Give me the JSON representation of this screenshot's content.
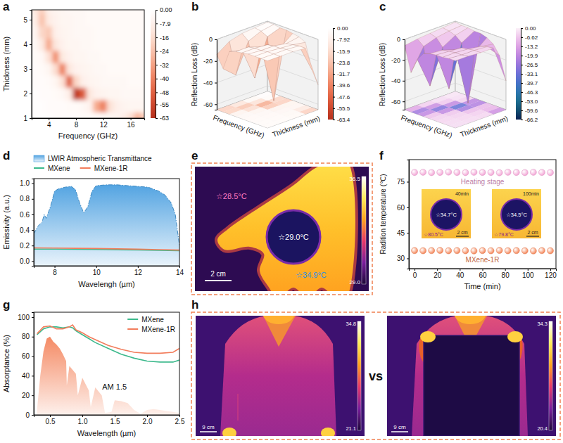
{
  "chart_data": [
    {
      "panel": "a",
      "type": "heatmap",
      "x_label": "Frequency (GHz)",
      "y_label": "Thickness (mm)",
      "x": [
        2,
        3,
        4,
        5,
        6,
        7,
        8,
        9,
        10,
        11,
        12,
        13,
        14,
        15,
        16,
        17,
        18
      ],
      "y": [
        1,
        1.5,
        2,
        2.5,
        3,
        3.5,
        4,
        4.5,
        5,
        5.5
      ],
      "cells": [
        [
          -1,
          -1,
          -1,
          -2,
          -2,
          -2,
          -2,
          -3,
          -3,
          -3,
          -4,
          -5,
          -6,
          -9,
          -15,
          -28,
          -20
        ],
        [
          -1,
          -1,
          -2,
          -2,
          -2,
          -3,
          -3,
          -4,
          -7,
          -30,
          -40,
          -14,
          -8,
          -6,
          -5,
          -5,
          -5
        ],
        [
          -1,
          -2,
          -2,
          -3,
          -4,
          -9,
          -60,
          -50,
          -12,
          -7,
          -6,
          -5,
          -5,
          -4,
          -4,
          -4,
          -4
        ],
        [
          -2,
          -2,
          -3,
          -5,
          -14,
          -48,
          -18,
          -8,
          -6,
          -5,
          -4,
          -4,
          -4,
          -4,
          -3,
          -3,
          -3
        ],
        [
          -2,
          -3,
          -5,
          -16,
          -40,
          -12,
          -7,
          -6,
          -5,
          -4,
          -4,
          -3,
          -3,
          -3,
          -3,
          -3,
          -3
        ],
        [
          -3,
          -4,
          -14,
          -36,
          -11,
          -7,
          -5,
          -5,
          -4,
          -4,
          -3,
          -3,
          -3,
          -3,
          -3,
          -3,
          -3
        ],
        [
          -4,
          -11,
          -30,
          -12,
          -7,
          -5,
          -5,
          -4,
          -4,
          -3,
          -3,
          -3,
          -3,
          -3,
          -3,
          -3,
          -3
        ],
        [
          -6,
          -18,
          -22,
          -8,
          -6,
          -5,
          -4,
          -4,
          -4,
          -3,
          -3,
          -3,
          -3,
          -3,
          -3,
          -3,
          -3
        ],
        [
          -9,
          -24,
          -10,
          -7,
          -5,
          -5,
          -4,
          -4,
          -3,
          -3,
          -3,
          -3,
          -3,
          -3,
          -3,
          -3,
          -3
        ],
        [
          -12,
          -20,
          -8,
          -6,
          -5,
          -4,
          -4,
          -4,
          -3,
          -3,
          -3,
          -3,
          -3,
          -3,
          -3,
          -3,
          -3
        ]
      ],
      "xlim": [
        1.5,
        18
      ],
      "ylim": [
        1,
        5.4
      ],
      "xticks": [
        4,
        8,
        12,
        16
      ],
      "yticks": [
        1,
        2,
        3,
        4,
        5
      ],
      "colorbar": {
        "range": [
          -63,
          0
        ],
        "ticks": [
          {
            "value": 0,
            "label": "0.00"
          },
          -7.9,
          -16,
          -24,
          -32,
          -40,
          -48,
          -55,
          -63
        ]
      }
    },
    {
      "panel": "b",
      "type": "surface3d",
      "x_label": "Frequency (GHz)",
      "y_label": "Thickness (mm)",
      "z_label": "Reflection Loss (dB)",
      "x": [
        2,
        4,
        6,
        8,
        10,
        12,
        14,
        16,
        18
      ],
      "y": [
        1,
        2,
        3,
        4,
        5
      ],
      "z": [
        [
          -1,
          -1,
          -2,
          -2,
          -3,
          -4,
          -7,
          -30,
          -42
        ],
        [
          -2,
          -3,
          -6,
          -63,
          -12,
          -6,
          -5,
          -4,
          -4
        ],
        [
          -3,
          -8,
          -40,
          -9,
          -5,
          -4,
          -4,
          -3,
          -3
        ],
        [
          -6,
          -35,
          -10,
          -5,
          -4,
          -4,
          -3,
          -3,
          -3
        ],
        [
          -14,
          -25,
          -7,
          -5,
          -4,
          -3,
          -3,
          -3,
          -3
        ]
      ],
      "xlim": [
        2,
        18
      ],
      "ylim": [
        1,
        5
      ],
      "zlim": [
        -65,
        0
      ],
      "zticks": [
        0,
        -20,
        -40,
        -60
      ],
      "colorbar": {
        "range": [
          -63.4,
          0
        ],
        "ticks": [
          {
            "value": 0,
            "label": "0.00"
          },
          -7.92,
          -15.9,
          -23.8,
          -31.7,
          -39.6,
          -47.6,
          -55.5,
          -63.4
        ]
      }
    },
    {
      "panel": "c",
      "type": "surface3d",
      "x_label": "Frequency (GHz)",
      "y_label": "Thickness (mm)",
      "z_label": "Reflection Loss (dB)",
      "x": [
        2,
        4,
        6,
        8,
        10,
        12,
        14,
        16,
        18
      ],
      "y": [
        1,
        2,
        3,
        4,
        5
      ],
      "z": [
        [
          -1,
          -2,
          -2,
          -3,
          -3,
          -5,
          -9,
          -18,
          -40
        ],
        [
          -2,
          -3,
          -5,
          -10,
          -66,
          -15,
          -7,
          -5,
          -4
        ],
        [
          -3,
          -5,
          -12,
          -50,
          -10,
          -6,
          -5,
          -4,
          -4
        ],
        [
          -4,
          -9,
          -45,
          -12,
          -6,
          -5,
          -4,
          -4,
          -3
        ],
        [
          -6,
          -30,
          -15,
          -7,
          -5,
          -4,
          -4,
          -3,
          -3
        ]
      ],
      "xlim": [
        2,
        18
      ],
      "ylim": [
        1,
        5
      ],
      "zlim": [
        -68,
        0
      ],
      "zticks": [
        0,
        -20,
        -40,
        -60
      ],
      "colorbar": {
        "range": [
          -66.2,
          0
        ],
        "ticks": [
          {
            "value": 0,
            "label": "0.00"
          },
          -6.62,
          -13.2,
          -19.9,
          -26.5,
          -33.1,
          -39.7,
          -46.3,
          {
            "value": -53,
            "label": "-53.0"
          },
          -59.6,
          -66.2
        ]
      }
    },
    {
      "panel": "d",
      "type": "line",
      "x_label": "Wavelengh (µm)",
      "y_label": "Emissivity (a.u.)",
      "xlim": [
        7,
        14
      ],
      "ylim": [
        -0.06,
        1.06
      ],
      "xticks": [
        8,
        10,
        12,
        14
      ],
      "yticks": [
        {
          "value": 0,
          "label": "0.0"
        },
        0.2,
        0.4,
        0.6,
        0.8,
        {
          "value": 1,
          "label": "1.0"
        }
      ],
      "legend": "top",
      "series": [
        {
          "name": "LWIR Atmospheric Transmittance",
          "type": "area",
          "color": "#4a9fe0",
          "line_style": "dashdot",
          "x": [
            7.0,
            7.2,
            7.4,
            7.5,
            7.6,
            7.8,
            8.0,
            8.2,
            8.5,
            8.8,
            9.0,
            9.2,
            9.4,
            9.6,
            9.8,
            10.0,
            10.5,
            11.0,
            11.5,
            12.0,
            12.5,
            13.0,
            13.3,
            13.6,
            13.8,
            14.0
          ],
          "values": [
            0.35,
            0.45,
            0.5,
            0.6,
            0.55,
            0.7,
            0.9,
            0.93,
            0.95,
            0.96,
            0.92,
            0.75,
            0.62,
            0.7,
            0.9,
            0.97,
            0.98,
            0.98,
            0.97,
            0.96,
            0.95,
            0.9,
            0.85,
            0.75,
            0.6,
            0.2
          ]
        },
        {
          "name": "MXene",
          "type": "line",
          "color": "#3cb98c",
          "x": [
            7,
            8,
            9,
            10,
            11,
            12,
            13,
            14
          ],
          "values": [
            0.155,
            0.155,
            0.152,
            0.15,
            0.147,
            0.143,
            0.14,
            0.135
          ]
        },
        {
          "name": "MXene-1R",
          "type": "line",
          "color": "#f27d5c",
          "x": [
            7,
            8,
            9,
            10,
            11,
            12,
            13,
            14
          ],
          "values": [
            0.17,
            0.168,
            0.165,
            0.162,
            0.158,
            0.153,
            0.148,
            0.142
          ]
        }
      ]
    },
    {
      "panel": "f",
      "type": "scatter",
      "x_label": "Time (min)",
      "y_label": "Radition temperature (℃)",
      "xlim": [
        -5,
        125
      ],
      "ylim": [
        24,
        88
      ],
      "xticks": [
        0,
        20,
        40,
        60,
        80,
        100,
        120
      ],
      "yticks": [
        30,
        45,
        60,
        75
      ],
      "marker": "circle",
      "series": [
        {
          "name": "Heating stage",
          "color": "#f3a6d6",
          "x": [
            0,
            7.5,
            15,
            22.5,
            30,
            37.5,
            45,
            52.5,
            60,
            67.5,
            75,
            82.5,
            90,
            97.5,
            105,
            112.5,
            120
          ],
          "values": [
            80.5,
            80.6,
            80.4,
            80.5,
            80.7,
            80.5,
            80.4,
            80.6,
            80.5,
            80.5,
            80.3,
            80.6,
            80.5,
            80.4,
            80.6,
            80.5,
            80.4
          ]
        },
        {
          "name": "MXene-1R",
          "color": "#f5875a",
          "x": [
            0,
            7.5,
            15,
            22.5,
            30,
            37.5,
            45,
            52.5,
            60,
            67.5,
            75,
            82.5,
            90,
            97.5,
            105,
            112.5,
            120
          ],
          "values": [
            34.6,
            34.5,
            34.6,
            34.7,
            34.5,
            34.6,
            34.5,
            34.4,
            34.6,
            34.5,
            34.7,
            34.5,
            34.6,
            34.5,
            34.4,
            34.6,
            34.5
          ]
        }
      ],
      "insets": [
        {
          "time": "40min",
          "center": "☆34.7°C",
          "corner": "☆80.5°C",
          "scale_bar": "2 cm"
        },
        {
          "time": "100min",
          "center": "☆34.5°C",
          "corner": "☆79.8°C",
          "scale_bar": "2 cm"
        }
      ]
    },
    {
      "panel": "g",
      "type": "line",
      "x_label": "Wavelength (µm)",
      "y_label": "Absorptance (%)",
      "xlim": [
        0.25,
        2.5
      ],
      "ylim": [
        0,
        105
      ],
      "xticks": [
        0.5,
        {
          "value": 1,
          "label": "1.0"
        },
        1.5,
        {
          "value": 2,
          "label": "2.0"
        },
        2.5
      ],
      "yticks": [
        0,
        20,
        40,
        60,
        80,
        100
      ],
      "legend": "top-right",
      "annotations": [
        "AM 1.5"
      ],
      "series": [
        {
          "type": "area",
          "color": "#f4845c",
          "x": [
            0.3,
            0.35,
            0.4,
            0.45,
            0.5,
            0.55,
            0.6,
            0.65,
            0.7,
            0.75,
            0.76,
            0.8,
            0.9,
            0.93,
            1.0,
            1.1,
            1.13,
            1.2,
            1.3,
            1.35,
            1.45,
            1.5,
            1.6,
            1.7,
            1.8,
            1.9,
            2.0,
            2.1,
            2.2,
            2.3,
            2.4,
            2.5
          ],
          "values": [
            5,
            40,
            65,
            78,
            80,
            75,
            72,
            68,
            62,
            55,
            30,
            50,
            42,
            20,
            38,
            25,
            8,
            28,
            20,
            2,
            3,
            15,
            14,
            12,
            5,
            1,
            5,
            6,
            5,
            4,
            3,
            2
          ]
        },
        {
          "name": "MXene",
          "type": "line",
          "color": "#3cb98c",
          "x": [
            0.3,
            0.4,
            0.5,
            0.6,
            0.7,
            0.8,
            0.85,
            0.9,
            1.0,
            1.1,
            1.2,
            1.4,
            1.6,
            1.8,
            2.0,
            2.2,
            2.4,
            2.5
          ],
          "values": [
            82,
            88,
            90,
            90,
            89,
            90,
            89,
            86,
            82,
            78,
            74,
            68,
            62,
            58,
            55,
            54,
            54,
            56
          ]
        },
        {
          "name": "MXene-1R",
          "type": "line",
          "color": "#f27d5c",
          "x": [
            0.3,
            0.4,
            0.5,
            0.6,
            0.7,
            0.8,
            0.85,
            0.9,
            1.0,
            1.1,
            1.2,
            1.4,
            1.6,
            1.8,
            2.0,
            2.2,
            2.4,
            2.5
          ],
          "values": [
            83,
            90,
            91,
            88,
            88,
            90,
            92,
            87,
            84,
            80,
            77,
            71,
            67,
            64,
            63,
            63,
            64,
            68
          ]
        }
      ]
    }
  ],
  "images": [
    {
      "panel": "e",
      "labels": [
        "☆28.5°C",
        "☆29.0°C",
        "☆34.9°C"
      ],
      "scale_bar": "2 cm",
      "colorbar": [
        "36.5",
        "29.0"
      ]
    },
    {
      "panel": "h",
      "photos": [
        {
          "colorbar": [
            "34.8",
            "21.1"
          ],
          "scale_bar": "9 cm"
        },
        {
          "colorbar": [
            "34.3",
            "20.4"
          ],
          "scale_bar": "9 cm"
        }
      ],
      "separator": "vs"
    }
  ]
}
